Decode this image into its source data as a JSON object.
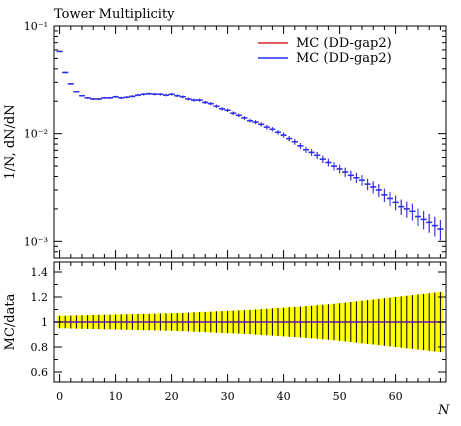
{
  "title": "Tower Multiplicity",
  "top_ylabel": "1/N, dN/dN",
  "ratio_ylabel": "MC/data",
  "xlabel": "N",
  "legend": [
    {
      "label": "MC (DD-gap2)",
      "color": "#d62728"
    },
    {
      "label": "MC (DD-gap2)",
      "color": "#1f33ff"
    }
  ],
  "chart_data": [
    {
      "type": "scatter",
      "title": "Tower Multiplicity",
      "ylabel": "1/N, dN/dN",
      "xlim": [
        -1,
        69
      ],
      "ylim": [
        0.0007,
        0.1
      ],
      "yscale": "log",
      "ytick_labels": [
        "10⁻³",
        "10⁻²",
        "10⁻¹"
      ],
      "x": [
        0,
        1,
        2,
        3,
        4,
        5,
        6,
        7,
        8,
        9,
        10,
        11,
        12,
        13,
        14,
        15,
        16,
        17,
        18,
        19,
        20,
        21,
        22,
        23,
        24,
        25,
        26,
        27,
        28,
        29,
        30,
        31,
        32,
        33,
        34,
        35,
        36,
        37,
        38,
        39,
        40,
        41,
        42,
        43,
        44,
        45,
        46,
        47,
        48,
        49,
        50,
        51,
        52,
        53,
        54,
        55,
        56,
        57,
        58,
        59,
        60,
        61,
        62,
        63,
        64,
        65,
        66,
        67,
        68
      ],
      "series": [
        {
          "name": "MC (DD-gap2)",
          "color": "#d62728",
          "values": [
            0.058,
            0.037,
            0.029,
            0.0245,
            0.0225,
            0.0215,
            0.021,
            0.021,
            0.0215,
            0.0215,
            0.022,
            0.0215,
            0.0218,
            0.0222,
            0.0228,
            0.0232,
            0.0235,
            0.0233,
            0.0232,
            0.0228,
            0.0232,
            0.0225,
            0.022,
            0.021,
            0.0205,
            0.0205,
            0.0195,
            0.019,
            0.018,
            0.017,
            0.0165,
            0.0155,
            0.0148,
            0.014,
            0.0132,
            0.0128,
            0.0122,
            0.0115,
            0.011,
            0.0103,
            0.0097,
            0.009,
            0.0084,
            0.0077,
            0.0071,
            0.0067,
            0.0063,
            0.0058,
            0.0054,
            0.005,
            0.0047,
            0.0044,
            0.0041,
            0.0039,
            0.0037,
            0.0034,
            0.0032,
            0.003,
            0.0027,
            0.0025,
            0.0023,
            0.0021,
            0.002,
            0.0019,
            0.0017,
            0.0016,
            0.0015,
            0.0014,
            0.0013
          ]
        },
        {
          "name": "MC (DD-gap2)",
          "color": "#1f33ff",
          "values": [
            0.058,
            0.037,
            0.029,
            0.0245,
            0.0225,
            0.0215,
            0.021,
            0.021,
            0.0215,
            0.0215,
            0.022,
            0.0215,
            0.0218,
            0.0222,
            0.0228,
            0.0232,
            0.0235,
            0.0233,
            0.0232,
            0.0228,
            0.0232,
            0.0225,
            0.022,
            0.021,
            0.0205,
            0.0205,
            0.0195,
            0.019,
            0.018,
            0.017,
            0.0165,
            0.0155,
            0.0148,
            0.014,
            0.0132,
            0.0128,
            0.0122,
            0.0115,
            0.011,
            0.0103,
            0.0097,
            0.009,
            0.0084,
            0.0077,
            0.0071,
            0.0067,
            0.0063,
            0.0058,
            0.0054,
            0.005,
            0.0047,
            0.0044,
            0.0041,
            0.0039,
            0.0037,
            0.0034,
            0.0032,
            0.003,
            0.0027,
            0.0025,
            0.0023,
            0.0021,
            0.002,
            0.0019,
            0.0017,
            0.0016,
            0.0015,
            0.0014,
            0.0013
          ]
        }
      ],
      "relative_errors": [
        0.012,
        0.014,
        0.016,
        0.017,
        0.018,
        0.019,
        0.02,
        0.021,
        0.021,
        0.022,
        0.022,
        0.023,
        0.023,
        0.024,
        0.024,
        0.025,
        0.025,
        0.026,
        0.026,
        0.027,
        0.027,
        0.028,
        0.029,
        0.03,
        0.031,
        0.032,
        0.033,
        0.034,
        0.035,
        0.036,
        0.037,
        0.038,
        0.039,
        0.04,
        0.041,
        0.043,
        0.045,
        0.047,
        0.049,
        0.051,
        0.054,
        0.057,
        0.06,
        0.063,
        0.066,
        0.07,
        0.074,
        0.078,
        0.082,
        0.087,
        0.092,
        0.097,
        0.103,
        0.109,
        0.115,
        0.121,
        0.128,
        0.135,
        0.142,
        0.149,
        0.156,
        0.163,
        0.17,
        0.177,
        0.184,
        0.191,
        0.198,
        0.205,
        0.212
      ]
    },
    {
      "type": "area",
      "ylabel": "MC/data",
      "xlabel": "N",
      "xlim": [
        -1,
        69
      ],
      "ylim": [
        0.52,
        1.48
      ],
      "xticks": [
        0,
        10,
        20,
        30,
        40,
        50,
        60
      ],
      "yticks": [
        0.6,
        0.8,
        1,
        1.2,
        1.4
      ],
      "ratio": 1.0,
      "band_halfwidth": [
        0.05,
        0.05,
        0.052,
        0.053,
        0.054,
        0.055,
        0.056,
        0.057,
        0.058,
        0.059,
        0.06,
        0.061,
        0.062,
        0.063,
        0.064,
        0.065,
        0.066,
        0.067,
        0.068,
        0.069,
        0.07,
        0.071,
        0.073,
        0.075,
        0.077,
        0.079,
        0.081,
        0.083,
        0.085,
        0.087,
        0.089,
        0.091,
        0.093,
        0.095,
        0.097,
        0.1,
        0.103,
        0.106,
        0.109,
        0.112,
        0.115,
        0.118,
        0.121,
        0.124,
        0.127,
        0.13,
        0.134,
        0.138,
        0.142,
        0.146,
        0.15,
        0.155,
        0.16,
        0.165,
        0.17,
        0.175,
        0.18,
        0.185,
        0.19,
        0.195,
        0.2,
        0.205,
        0.21,
        0.215,
        0.22,
        0.225,
        0.23,
        0.235,
        0.24
      ]
    }
  ]
}
